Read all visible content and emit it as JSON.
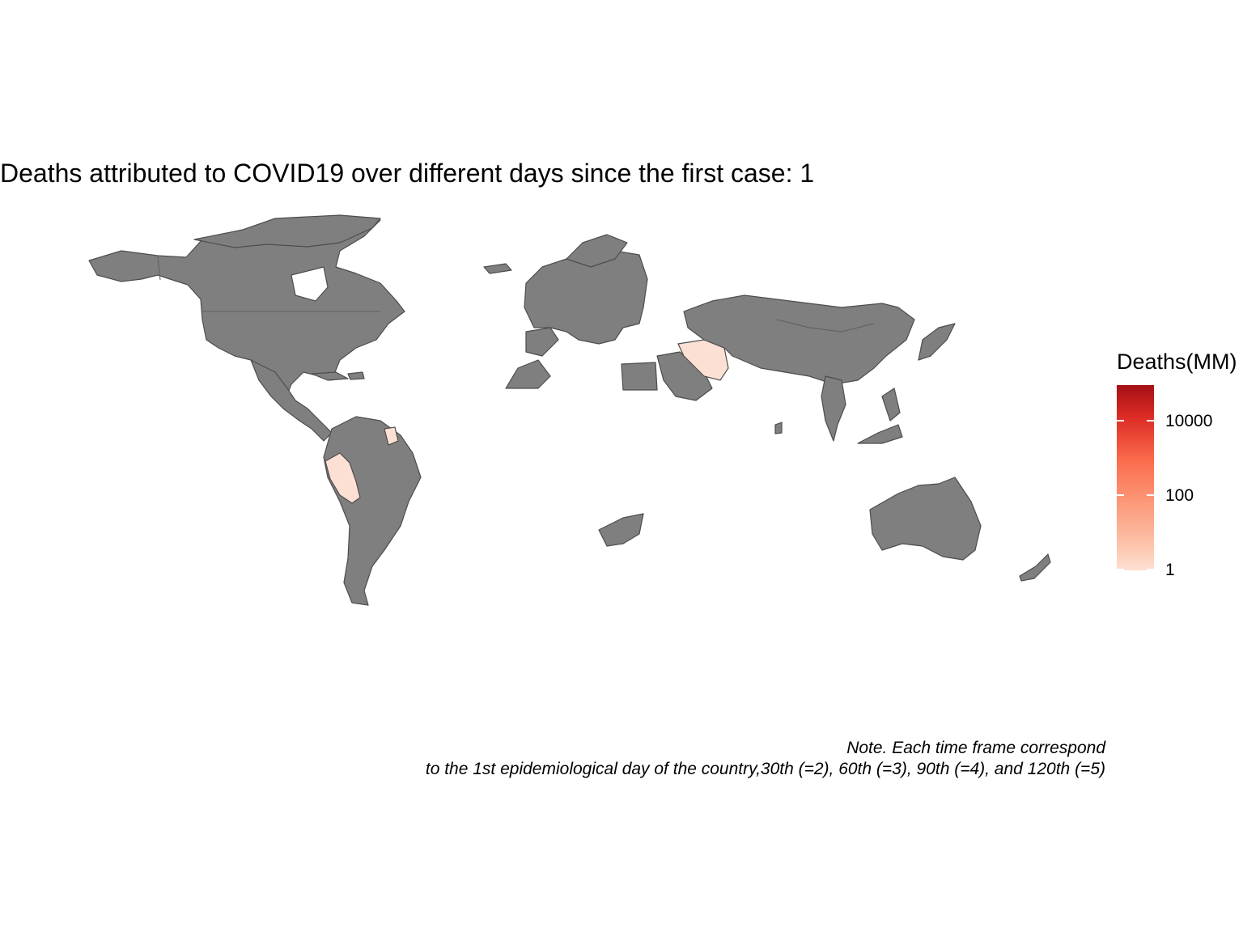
{
  "title": "Deaths attributed to COVID19 over different days since the first case: 1",
  "legend": {
    "title": "Deaths(MM)",
    "labels": [
      "1",
      "100",
      "10000"
    ],
    "scale": "log10",
    "colors": {
      "low": "#fee0d2",
      "high": "#a50f15",
      "no_data": "#7f7f7f"
    }
  },
  "caption": {
    "line1": "Note. Each time frame correspond",
    "line2": "to the 1st epidemiological day of the country,30th (=2), 60th (=3), 90th (=4), and 120th (=5)"
  },
  "highlighted_regions": [
    "iran",
    "peru",
    "guyana"
  ]
}
